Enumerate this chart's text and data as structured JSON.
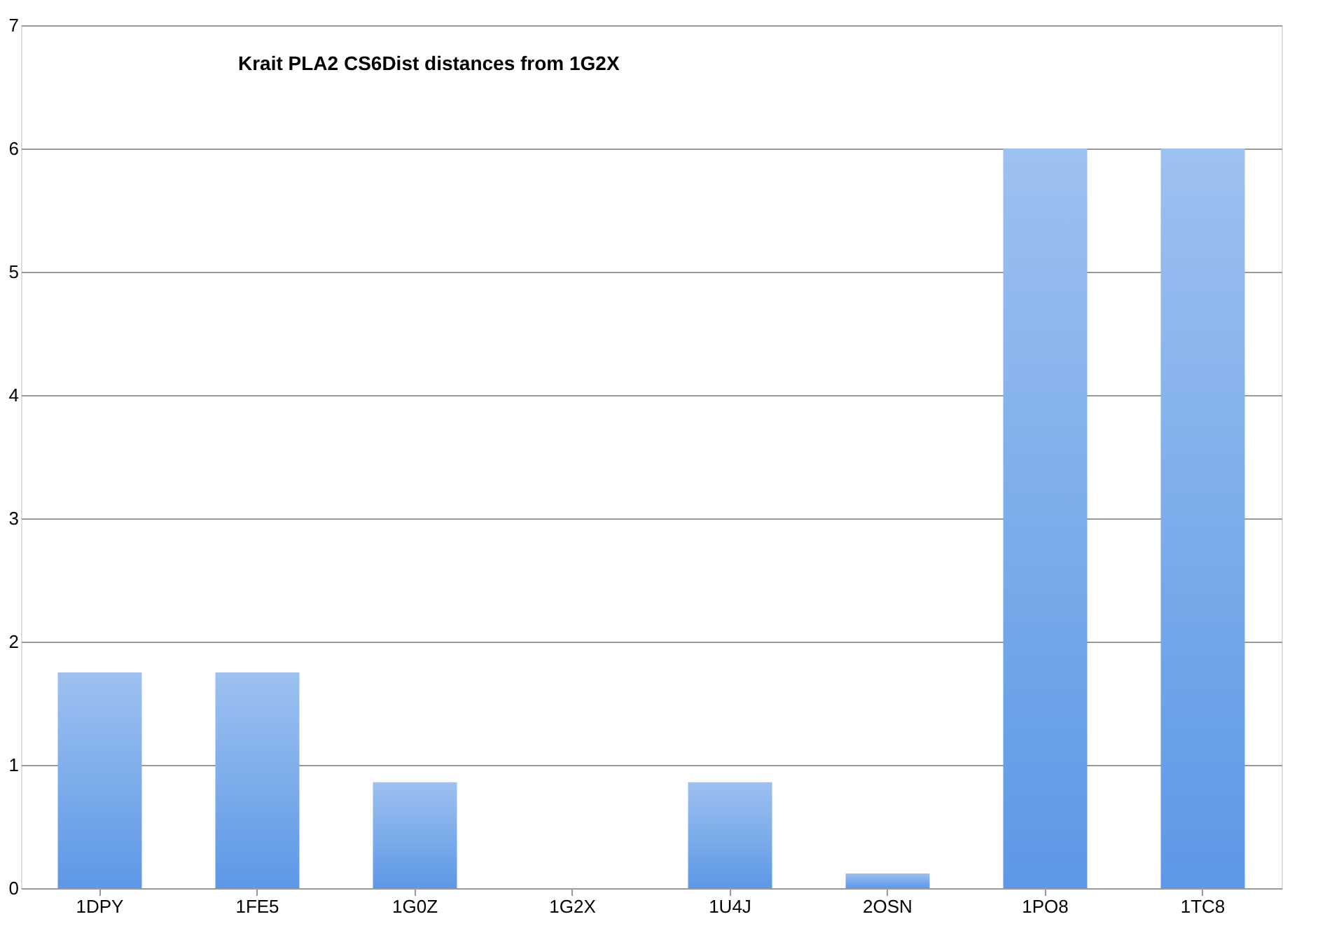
{
  "chart_data": {
    "type": "bar",
    "title": "Krait PLA2 CS6Dist distances from 1G2X",
    "categories": [
      "1DPY",
      "1FE5",
      "1G0Z",
      "1G2X",
      "1U4J",
      "2OSN",
      "1PO8",
      "1TC8"
    ],
    "values": [
      1.75,
      1.75,
      0.86,
      0,
      0.86,
      0.12,
      6,
      6
    ],
    "color": "#5d98e6",
    "ylim": [
      0,
      7
    ],
    "yticks": [
      0,
      1,
      2,
      3,
      4,
      5,
      6,
      7
    ],
    "grid": "y"
  }
}
